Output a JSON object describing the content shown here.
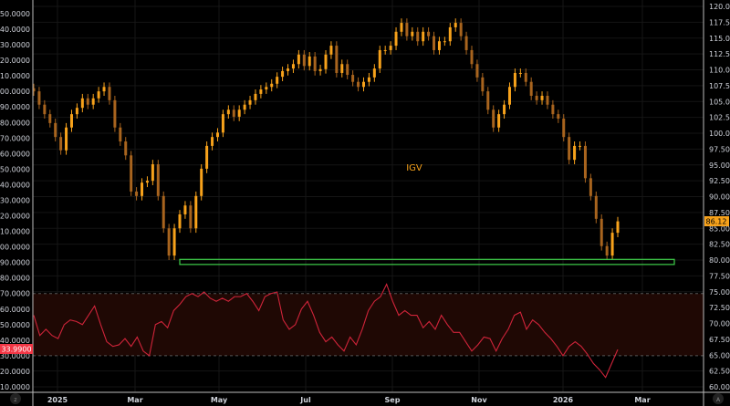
{
  "chart_data": {
    "type": "candlestick",
    "symbol_label": "IGV",
    "x_ticks": [
      "2025",
      "Mar",
      "May",
      "Jul",
      "Sep",
      "Nov",
      "2026",
      "Mar"
    ],
    "price_axis": {
      "side": "right",
      "range": [
        60,
        120
      ],
      "step": 2.5
    },
    "rsi_axis": {
      "side": "left",
      "range": [
        10,
        250
      ],
      "step": 10
    },
    "last_price": "86.12",
    "last_rsi": "33.9900",
    "support_zone": {
      "low": 79.3,
      "high": 80.1,
      "color": "#3fcf4a"
    },
    "rsi_levels": {
      "upper": 70,
      "lower": 30
    },
    "colors": {
      "up": "#f7a21b",
      "down": "#a8641e",
      "rsi": "#d0243a",
      "band": "#1f0804",
      "last_price_bg": "#f7a21b",
      "last_rsi_bg": "#f23645"
    },
    "price_close": [
      106.6,
      104.5,
      103.0,
      101.6,
      99.4,
      97.3,
      100.9,
      103.0,
      104.0,
      105.5,
      104.5,
      105.5,
      106.6,
      107.3,
      105.2,
      100.9,
      98.7,
      96.5,
      90.8,
      90.1,
      92.2,
      92.5,
      95.1,
      90.1,
      85.0,
      80.7,
      85.0,
      87.2,
      88.6,
      85.0,
      90.1,
      94.4,
      98.0,
      99.4,
      100.1,
      103.0,
      103.7,
      102.6,
      103.7,
      104.5,
      105.2,
      106.2,
      106.9,
      107.3,
      107.8,
      108.9,
      109.8,
      110.2,
      110.9,
      112.4,
      110.6,
      112.1,
      109.8,
      110.1,
      112.4,
      113.8,
      109.5,
      110.9,
      109.2,
      108.1,
      107.3,
      108.1,
      108.8,
      110.2,
      113.1,
      113.1,
      113.8,
      116.0,
      117.4,
      115.3,
      116.0,
      114.5,
      116.0,
      115.3,
      113.1,
      114.5,
      114.5,
      116.7,
      117.4,
      115.3,
      113.1,
      110.9,
      108.8,
      106.6,
      103.7,
      100.9,
      103.0,
      104.5,
      107.3,
      109.5,
      109.5,
      108.1,
      105.9,
      105.2,
      105.9,
      104.5,
      103.0,
      102.3,
      99.4,
      95.8,
      98.0,
      98.0,
      92.9,
      90.1,
      86.5,
      82.2,
      80.7,
      84.3,
      86.1
    ],
    "rsi": [
      56,
      43,
      47,
      43,
      41,
      50,
      53,
      52,
      50,
      56,
      62,
      50,
      39,
      36,
      37,
      41,
      36,
      42,
      33,
      30,
      50,
      52,
      48,
      59,
      63,
      68,
      70,
      68,
      71,
      67,
      65,
      67,
      65,
      68,
      68,
      70,
      65,
      59,
      68,
      70,
      71,
      53,
      47,
      50,
      60,
      65,
      56,
      45,
      39,
      42,
      37,
      33,
      42,
      37,
      47,
      59,
      65,
      68,
      76,
      65,
      56,
      59,
      56,
      56,
      48,
      52,
      47,
      56,
      50,
      45,
      45,
      39,
      33,
      37,
      42,
      41,
      33,
      41,
      47,
      56,
      58,
      47,
      53,
      50,
      45,
      41,
      36,
      30,
      36,
      39,
      36,
      31,
      25,
      21,
      16,
      25,
      34
    ]
  }
}
